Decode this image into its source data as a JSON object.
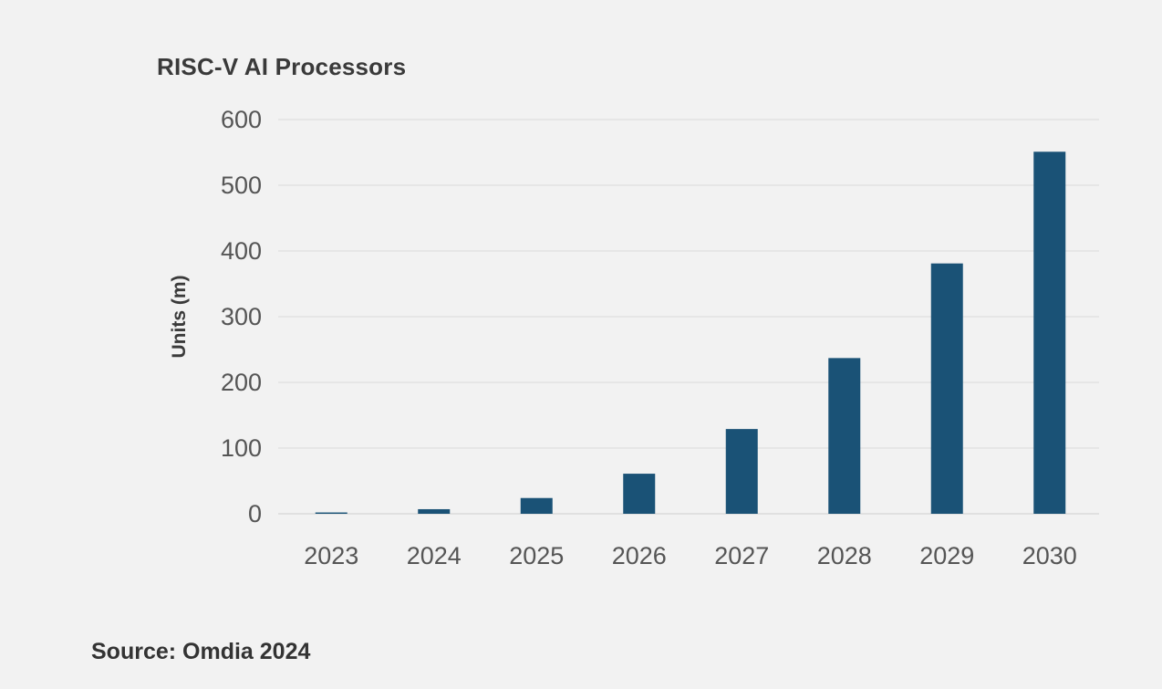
{
  "colors": {
    "background": "#f2f2f2",
    "bar": "#1a5276",
    "grid": "#d9d9d9",
    "text": "#555555"
  },
  "chart_data": {
    "type": "bar",
    "title": "RISC-V AI Processors",
    "xlabel": "",
    "ylabel": "Units (m)",
    "categories": [
      "2023",
      "2024",
      "2025",
      "2026",
      "2027",
      "2028",
      "2029",
      "2030"
    ],
    "series": [
      {
        "values": [
          2,
          7,
          24,
          61,
          129,
          237,
          381,
          551
        ]
      }
    ],
    "ylim": [
      0,
      600
    ],
    "yticks": [
      0,
      100,
      200,
      300,
      400,
      500,
      600
    ],
    "grid": true,
    "legend": "none"
  },
  "source": "Source: Omdia 2024"
}
